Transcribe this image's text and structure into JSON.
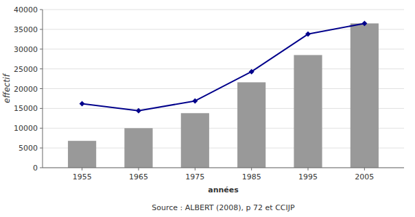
{
  "chart_data": {
    "type": "bar",
    "x": [
      1955,
      1965,
      1975,
      1985,
      1995,
      2005
    ],
    "xlim": [
      1948,
      2012
    ],
    "xticks": [
      1955,
      1965,
      1975,
      1985,
      1995,
      2005
    ],
    "ylim": [
      0,
      40000
    ],
    "yticks": [
      0,
      5000,
      10000,
      15000,
      20000,
      25000,
      30000,
      35000,
      40000
    ],
    "ylabel": "effectif",
    "xlabel": "années",
    "annotations": [
      "Source : ALBERT (2008), p 72 et CCIJP"
    ],
    "grid": true,
    "series": [
      {
        "type": "bar",
        "color": "#999999",
        "values": [
          6800,
          10000,
          13800,
          21600,
          28500,
          36500
        ]
      },
      {
        "type": "line",
        "color": "#00008B",
        "marker": "diamond",
        "values": [
          16200,
          14400,
          16900,
          24300,
          33800,
          36500
        ]
      }
    ]
  }
}
